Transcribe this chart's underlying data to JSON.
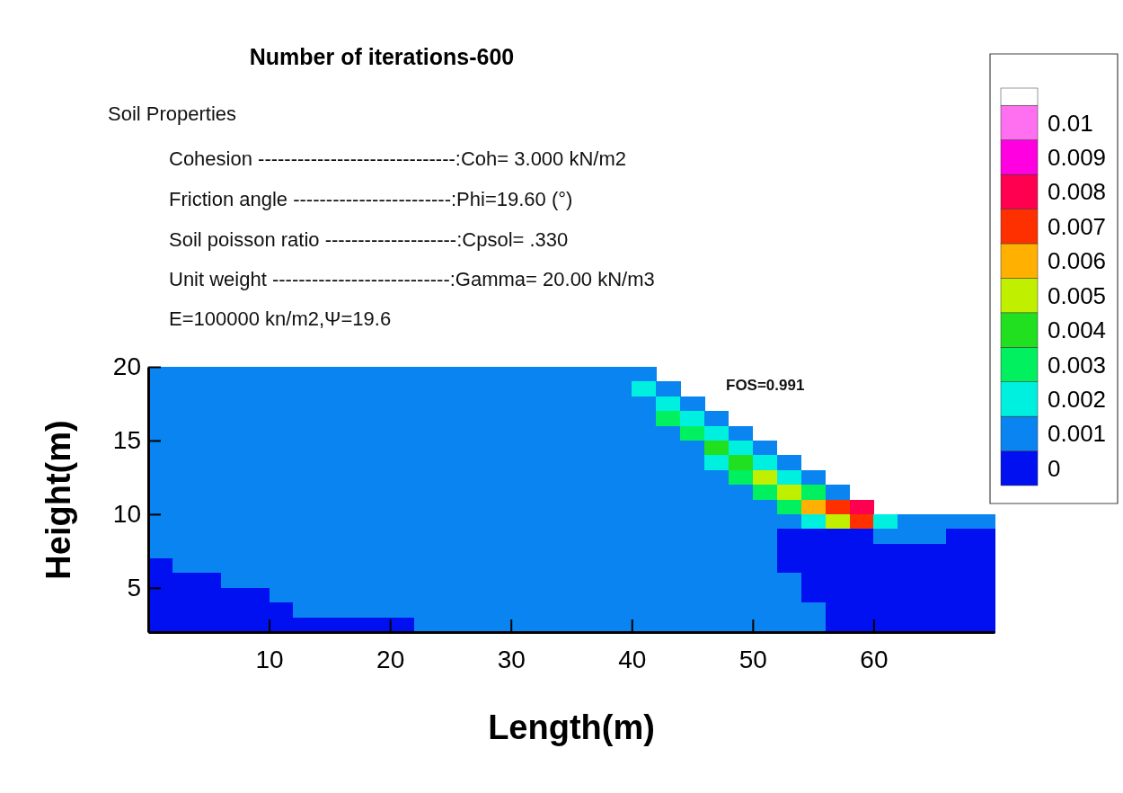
{
  "chart_data": {
    "type": "heatmap",
    "title": "Number of iterations-600",
    "annotations": [
      "Soil Properties",
      "Cohesion ------------------------------:Coh=  3.000 kN/m2",
      "Friction angle ------------------------:Phi=19.60 (°)",
      "Soil poisson ratio --------------------:Cpsol=  .330",
      "Unit weight ---------------------------:Gamma= 20.00 kN/m3",
      "E=100000 kn/m2,Ψ=19.6",
      "FOS=0.991"
    ],
    "xlabel": "Length(m)",
    "ylabel": "Height(m)",
    "xlim": [
      0,
      70
    ],
    "ylim": [
      2,
      20
    ],
    "xticks": [
      10,
      20,
      30,
      40,
      50,
      60
    ],
    "yticks": [
      5,
      10,
      15,
      20
    ],
    "clim": [
      -0.0005,
      0.011
    ],
    "cticks": [
      {
        "value": 0,
        "label": "0"
      },
      {
        "value": 0.001,
        "label": "0.001"
      },
      {
        "value": 0.002,
        "label": "0.002"
      },
      0.003,
      0.004,
      0.005,
      0.006,
      0.007,
      0.008,
      0.009,
      0.01
    ],
    "colors": [
      "#0010f0",
      "#0a84f0",
      "#00f0e0",
      "#00f060",
      "#20e020",
      "#c0f000",
      "#ffb000",
      "#ff3000",
      "#ff0050",
      "#ff00e0",
      "#ff70f0",
      "#ffffff"
    ],
    "cells": [
      [
        0.001,
        0.001,
        0.001,
        0.001,
        0.001,
        0.001,
        0.001,
        0.001,
        0.001,
        0.001,
        0.001,
        0.001,
        0.001,
        0.001,
        0.001,
        0.001,
        0.001,
        0.001,
        0.001,
        0.001,
        0.001,
        null,
        null,
        null,
        null,
        null,
        null,
        null,
        null,
        null,
        null,
        null,
        null,
        null,
        null
      ],
      [
        0.001,
        0.001,
        0.001,
        0.001,
        0.001,
        0.001,
        0.001,
        0.001,
        0.001,
        0.001,
        0.001,
        0.001,
        0.001,
        0.001,
        0.001,
        0.001,
        0.001,
        0.001,
        0.001,
        0.001,
        0.002,
        0.001,
        null,
        null,
        null,
        null,
        null,
        null,
        null,
        null,
        null,
        null,
        null,
        null,
        null
      ],
      [
        0.001,
        0.001,
        0.001,
        0.001,
        0.001,
        0.001,
        0.001,
        0.001,
        0.001,
        0.001,
        0.001,
        0.001,
        0.001,
        0.001,
        0.001,
        0.001,
        0.001,
        0.001,
        0.001,
        0.001,
        0.001,
        0.002,
        0.001,
        null,
        null,
        null,
        null,
        null,
        null,
        null,
        null,
        null,
        null,
        null,
        null
      ],
      [
        0.001,
        0.001,
        0.001,
        0.001,
        0.001,
        0.001,
        0.001,
        0.001,
        0.001,
        0.001,
        0.001,
        0.001,
        0.001,
        0.001,
        0.001,
        0.001,
        0.001,
        0.001,
        0.001,
        0.001,
        0.001,
        0.003,
        0.002,
        0.001,
        null,
        null,
        null,
        null,
        null,
        null,
        null,
        null,
        null,
        null,
        null
      ],
      [
        0.001,
        0.001,
        0.001,
        0.001,
        0.001,
        0.001,
        0.001,
        0.001,
        0.001,
        0.001,
        0.001,
        0.001,
        0.001,
        0.001,
        0.001,
        0.001,
        0.001,
        0.001,
        0.001,
        0.001,
        0.001,
        0.001,
        0.003,
        0.002,
        0.001,
        null,
        null,
        null,
        null,
        null,
        null,
        null,
        null,
        null,
        null
      ],
      [
        0.001,
        0.001,
        0.001,
        0.001,
        0.001,
        0.001,
        0.001,
        0.001,
        0.001,
        0.001,
        0.001,
        0.001,
        0.001,
        0.001,
        0.001,
        0.001,
        0.001,
        0.001,
        0.001,
        0.001,
        0.001,
        0.001,
        0.001,
        0.004,
        0.002,
        0.001,
        null,
        null,
        null,
        null,
        null,
        null,
        null,
        null,
        null
      ],
      [
        0.001,
        0.001,
        0.001,
        0.001,
        0.001,
        0.001,
        0.001,
        0.001,
        0.001,
        0.001,
        0.001,
        0.001,
        0.001,
        0.001,
        0.001,
        0.001,
        0.001,
        0.001,
        0.001,
        0.001,
        0.001,
        0.001,
        0.001,
        0.002,
        0.004,
        0.002,
        0.001,
        null,
        null,
        null,
        null,
        null,
        null,
        null,
        null
      ],
      [
        0.001,
        0.001,
        0.001,
        0.001,
        0.001,
        0.001,
        0.001,
        0.001,
        0.001,
        0.001,
        0.001,
        0.001,
        0.001,
        0.001,
        0.001,
        0.001,
        0.001,
        0.001,
        0.001,
        0.001,
        0.001,
        0.001,
        0.001,
        0.001,
        0.003,
        0.005,
        0.002,
        0.001,
        null,
        null,
        null,
        null,
        null,
        null,
        null
      ],
      [
        0.001,
        0.001,
        0.001,
        0.001,
        0.001,
        0.001,
        0.001,
        0.001,
        0.001,
        0.001,
        0.001,
        0.001,
        0.001,
        0.001,
        0.001,
        0.001,
        0.001,
        0.001,
        0.001,
        0.001,
        0.001,
        0.001,
        0.001,
        0.001,
        0.001,
        0.003,
        0.005,
        0.003,
        0.001,
        null,
        null,
        null,
        null,
        null,
        null
      ],
      [
        0.001,
        0.001,
        0.001,
        0.001,
        0.001,
        0.001,
        0.001,
        0.001,
        0.001,
        0.001,
        0.001,
        0.001,
        0.001,
        0.001,
        0.001,
        0.001,
        0.001,
        0.001,
        0.001,
        0.001,
        0.001,
        0.001,
        0.001,
        0.001,
        0.001,
        0.001,
        0.003,
        0.006,
        0.007,
        0.008,
        null,
        null,
        null,
        null,
        null
      ],
      [
        0.001,
        0.001,
        0.001,
        0.001,
        0.001,
        0.001,
        0.001,
        0.001,
        0.001,
        0.001,
        0.001,
        0.001,
        0.001,
        0.001,
        0.001,
        0.001,
        0.001,
        0.001,
        0.001,
        0.001,
        0.001,
        0.001,
        0.001,
        0.001,
        0.001,
        0.001,
        0.001,
        0.002,
        0.005,
        0.007,
        0.002,
        0.001,
        0.001,
        0.001,
        0.001
      ],
      [
        0.001,
        0.001,
        0.001,
        0.001,
        0.001,
        0.001,
        0.001,
        0.001,
        0.001,
        0.001,
        0.001,
        0.001,
        0.001,
        0.001,
        0.001,
        0.001,
        0.001,
        0.001,
        0.001,
        0.001,
        0.001,
        0.001,
        0.001,
        0.001,
        0.001,
        0.001,
        0,
        0,
        0,
        0,
        0.001,
        0.001,
        0.001,
        0,
        0
      ],
      [
        0.001,
        0.001,
        0.001,
        0.001,
        0.001,
        0.001,
        0.001,
        0.001,
        0.001,
        0.001,
        0.001,
        0.001,
        0.001,
        0.001,
        0.001,
        0.001,
        0.001,
        0.001,
        0.001,
        0.001,
        0.001,
        0.001,
        0.001,
        0.001,
        0.001,
        0.001,
        0,
        0,
        0,
        0,
        0,
        0,
        0,
        0,
        0
      ],
      [
        0,
        0.001,
        0.001,
        0.001,
        0.001,
        0.001,
        0.001,
        0.001,
        0.001,
        0.001,
        0.001,
        0.001,
        0.001,
        0.001,
        0.001,
        0.001,
        0.001,
        0.001,
        0.001,
        0.001,
        0.001,
        0.001,
        0.001,
        0.001,
        0.001,
        0.001,
        0,
        0,
        0,
        0,
        0,
        0,
        0,
        0,
        0
      ],
      [
        0,
        0,
        0,
        0.001,
        0.001,
        0.001,
        0.001,
        0.001,
        0.001,
        0.001,
        0.001,
        0.001,
        0.001,
        0.001,
        0.001,
        0.001,
        0.001,
        0.001,
        0.001,
        0.001,
        0.001,
        0.001,
        0.001,
        0.001,
        0.001,
        0.001,
        0.001,
        0,
        0,
        0,
        0,
        0,
        0,
        0,
        0
      ],
      [
        0,
        0,
        0,
        0,
        0,
        0.001,
        0.001,
        0.001,
        0.001,
        0.001,
        0.001,
        0.001,
        0.001,
        0.001,
        0.001,
        0.001,
        0.001,
        0.001,
        0.001,
        0.001,
        0.001,
        0.001,
        0.001,
        0.001,
        0.001,
        0.001,
        0.001,
        0,
        0,
        0,
        0,
        0,
        0,
        0,
        0
      ],
      [
        0,
        0,
        0,
        0,
        0,
        0,
        0.001,
        0.001,
        0.001,
        0.001,
        0.001,
        0.001,
        0.001,
        0.001,
        0.001,
        0.001,
        0.001,
        0.001,
        0.001,
        0.001,
        0.001,
        0.001,
        0.001,
        0.001,
        0.001,
        0.001,
        0.001,
        0.001,
        0,
        0,
        0,
        0,
        0,
        0,
        0
      ],
      [
        0,
        0,
        0,
        0,
        0,
        0,
        0,
        0,
        0,
        0,
        0,
        0.001,
        0.001,
        0.001,
        0.001,
        0.001,
        0.001,
        0.001,
        0.001,
        0.001,
        0.001,
        0.001,
        0.001,
        0.001,
        0.001,
        0.001,
        0.001,
        0.001,
        0,
        0,
        0,
        0,
        0,
        0,
        0
      ]
    ]
  }
}
